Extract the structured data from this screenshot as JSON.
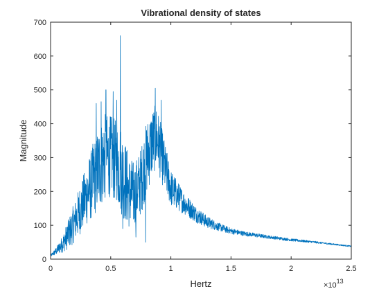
{
  "chart_data": {
    "type": "line",
    "title": "Vibrational density of states",
    "xlabel": "Hertz",
    "ylabel": "Magnitude",
    "x_exponent_label": "×10",
    "x_exponent_power": "13",
    "xlim": [
      0,
      2.5
    ],
    "ylim": [
      0,
      700
    ],
    "x_scale": "linear (×10^13 Hz)",
    "grid": false,
    "box": true,
    "x_ticks": [
      {
        "value": 0,
        "label": "0"
      },
      {
        "value": 0.5,
        "label": "0.5"
      },
      {
        "value": 1,
        "label": "1"
      },
      {
        "value": 1.5,
        "label": "1.5"
      },
      {
        "value": 2,
        "label": "2"
      },
      {
        "value": 2.5,
        "label": "2.5"
      }
    ],
    "y_ticks": [
      {
        "value": 0,
        "label": "0"
      },
      {
        "value": 100,
        "label": "100"
      },
      {
        "value": 200,
        "label": "200"
      },
      {
        "value": 300,
        "label": "300"
      },
      {
        "value": 400,
        "label": "400"
      },
      {
        "value": 500,
        "label": "500"
      },
      {
        "value": 600,
        "label": "600"
      },
      {
        "value": 700,
        "label": "700"
      }
    ],
    "series": [
      {
        "color": "#0072BD",
        "envelope_x": [
          0,
          0.05,
          0.1,
          0.15,
          0.2,
          0.25,
          0.3,
          0.35,
          0.4,
          0.45,
          0.5,
          0.55,
          0.58,
          0.6,
          0.65,
          0.7,
          0.75,
          0.8,
          0.85,
          0.88,
          0.9,
          0.95,
          1.0,
          1.1,
          1.2,
          1.3,
          1.4,
          1.5,
          1.6,
          1.8,
          2.0,
          2.2,
          2.4,
          2.5
        ],
        "envelope_mean": [
          10,
          25,
          45,
          75,
          110,
          150,
          190,
          230,
          270,
          300,
          305,
          285,
          270,
          250,
          200,
          190,
          230,
          300,
          350,
          360,
          340,
          270,
          210,
          170,
          135,
          110,
          95,
          83,
          76,
          66,
          57,
          50,
          42,
          38
        ],
        "envelope_spread": [
          3,
          12,
          25,
          45,
          60,
          75,
          90,
          110,
          125,
          130,
          120,
          125,
          130,
          130,
          110,
          95,
          100,
          110,
          100,
          95,
          90,
          75,
          55,
          35,
          25,
          18,
          12,
          9,
          7,
          5,
          4,
          3,
          2,
          2
        ],
        "peaks": [
          {
            "x": 0.58,
            "y": 660
          },
          {
            "x": 0.46,
            "y": 500
          },
          {
            "x": 0.52,
            "y": 495
          },
          {
            "x": 0.87,
            "y": 505
          },
          {
            "x": 0.42,
            "y": 465
          },
          {
            "x": 0.55,
            "y": 470
          },
          {
            "x": 0.92,
            "y": 470
          },
          {
            "x": 0.38,
            "y": 460
          },
          {
            "x": 0.79,
            "y": 50
          },
          {
            "x": 0.71,
            "y": 65
          },
          {
            "x": 0.6,
            "y": 90
          }
        ],
        "sample_count": 1600
      }
    ]
  }
}
